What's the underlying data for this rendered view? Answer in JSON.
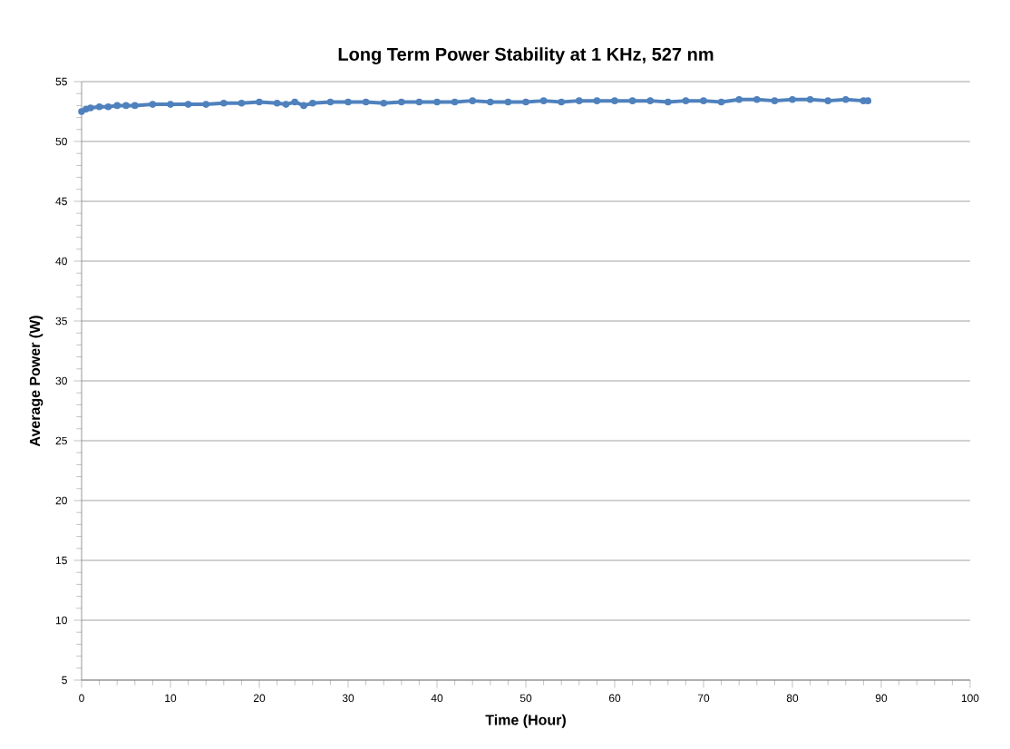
{
  "chart_data": {
    "type": "line",
    "title": "Long Term Power Stability at 1 KHz, 527 nm",
    "xlabel": "Time (Hour)",
    "ylabel": "Average Power (W)",
    "x": [
      0,
      0.5,
      1,
      2,
      3,
      4,
      5,
      6,
      8,
      10,
      12,
      14,
      16,
      18,
      20,
      22,
      23,
      24,
      25,
      26,
      28,
      30,
      32,
      34,
      36,
      38,
      40,
      42,
      44,
      46,
      48,
      50,
      52,
      54,
      56,
      58,
      60,
      62,
      64,
      66,
      68,
      70,
      72,
      74,
      76,
      78,
      80,
      82,
      84,
      86,
      88,
      88.5
    ],
    "series": [
      {
        "color": "#4f81bd",
        "values": [
          52.5,
          52.7,
          52.8,
          52.9,
          52.9,
          53.0,
          53.0,
          53.0,
          53.1,
          53.1,
          53.1,
          53.1,
          53.2,
          53.2,
          53.3,
          53.2,
          53.1,
          53.3,
          53.0,
          53.2,
          53.3,
          53.3,
          53.3,
          53.2,
          53.3,
          53.3,
          53.3,
          53.3,
          53.4,
          53.3,
          53.3,
          53.3,
          53.4,
          53.3,
          53.4,
          53.4,
          53.4,
          53.4,
          53.4,
          53.3,
          53.4,
          53.4,
          53.3,
          53.5,
          53.5,
          53.4,
          53.5,
          53.5,
          53.4,
          53.5,
          53.4,
          53.4
        ]
      }
    ],
    "xlim": [
      0,
      100
    ],
    "xticks": [
      0,
      10,
      20,
      30,
      40,
      50,
      60,
      70,
      80,
      90,
      100
    ],
    "ylim": [
      5,
      55
    ],
    "yticks": [
      5,
      10,
      15,
      20,
      25,
      30,
      35,
      40,
      45,
      50,
      55
    ],
    "grid": "y",
    "marker": "circle",
    "line_style": "solid"
  }
}
